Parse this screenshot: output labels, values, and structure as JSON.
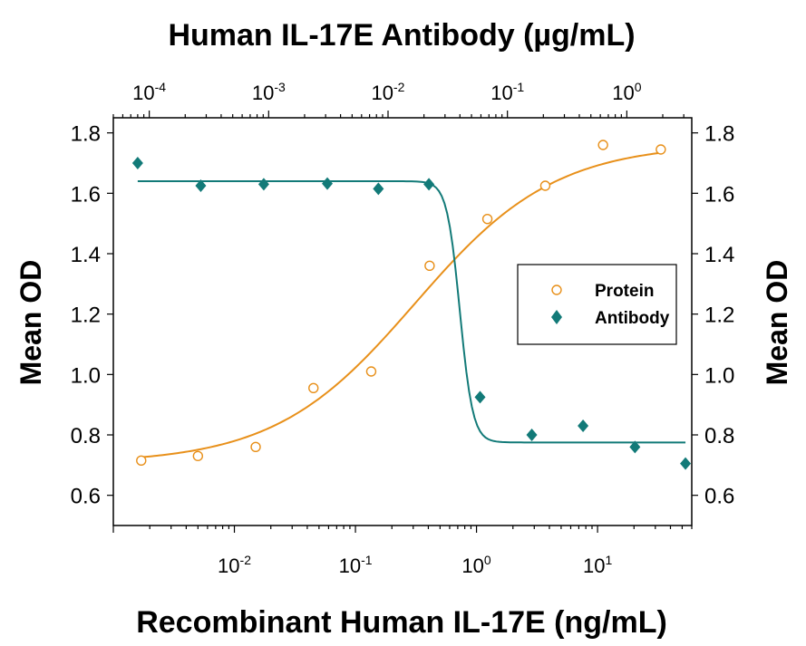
{
  "chart_data": {
    "type": "scatter",
    "title": "Human IL-17E Antibody (µg/mL)",
    "xlabel": "Recombinant Human IL-17E  (ng/mL)",
    "ylabel": "Mean OD",
    "ylabel_right": "Mean OD",
    "x_scale": "log",
    "x_range": [
      0.001,
      60
    ],
    "ylim": [
      0.5,
      1.85
    ],
    "x_ticks": [
      {
        "value": 0.01,
        "base": "10",
        "exp": "-2"
      },
      {
        "value": 0.1,
        "base": "10",
        "exp": "-1"
      },
      {
        "value": 1,
        "base": "10",
        "exp": "0"
      },
      {
        "value": 10,
        "base": "10",
        "exp": "1"
      }
    ],
    "top_axis": {
      "label": "Human IL-17E Antibody (µg/mL)",
      "scale": "log",
      "range": [
        5e-05,
        3.5
      ],
      "ticks": [
        {
          "value": 0.0001,
          "base": "10",
          "exp": "-4"
        },
        {
          "value": 0.001,
          "base": "10",
          "exp": "-3"
        },
        {
          "value": 0.01,
          "base": "10",
          "exp": "-2"
        },
        {
          "value": 0.1,
          "base": "10",
          "exp": "-1"
        },
        {
          "value": 1,
          "base": "10",
          "exp": "0"
        }
      ]
    },
    "y_ticks": [
      "0.6",
      "0.8",
      "1.0",
      "1.2",
      "1.4",
      "1.6",
      "1.8"
    ],
    "grid": false,
    "legend_position": "right",
    "series": [
      {
        "name": "Protein",
        "marker": "open-circle",
        "axis": "bottom",
        "color": "#e8901a",
        "x": [
          0.0017,
          0.005,
          0.015,
          0.045,
          0.135,
          0.41,
          1.23,
          3.7,
          11.1,
          33.3
        ],
        "y": [
          0.715,
          0.73,
          0.76,
          0.955,
          1.01,
          1.36,
          1.515,
          1.625,
          1.76,
          1.745
        ],
        "fit": {
          "bottom": 0.705,
          "top": 1.765,
          "ec50": 0.31,
          "hill": 0.75
        }
      },
      {
        "name": "Antibody",
        "marker": "filled-diamond",
        "axis": "top",
        "color": "#127a78",
        "x": [
          8e-05,
          0.00027,
          0.00091,
          0.0031,
          0.0083,
          0.022,
          0.059,
          0.16,
          0.43,
          1.17,
          3.1
        ],
        "y": [
          1.7,
          1.625,
          1.63,
          1.632,
          1.615,
          1.63,
          0.925,
          0.8,
          0.83,
          0.76,
          0.705
        ],
        "fit": {
          "top": 1.64,
          "bottom": 0.775,
          "ic50": 0.04,
          "hill": 8
        }
      }
    ]
  }
}
